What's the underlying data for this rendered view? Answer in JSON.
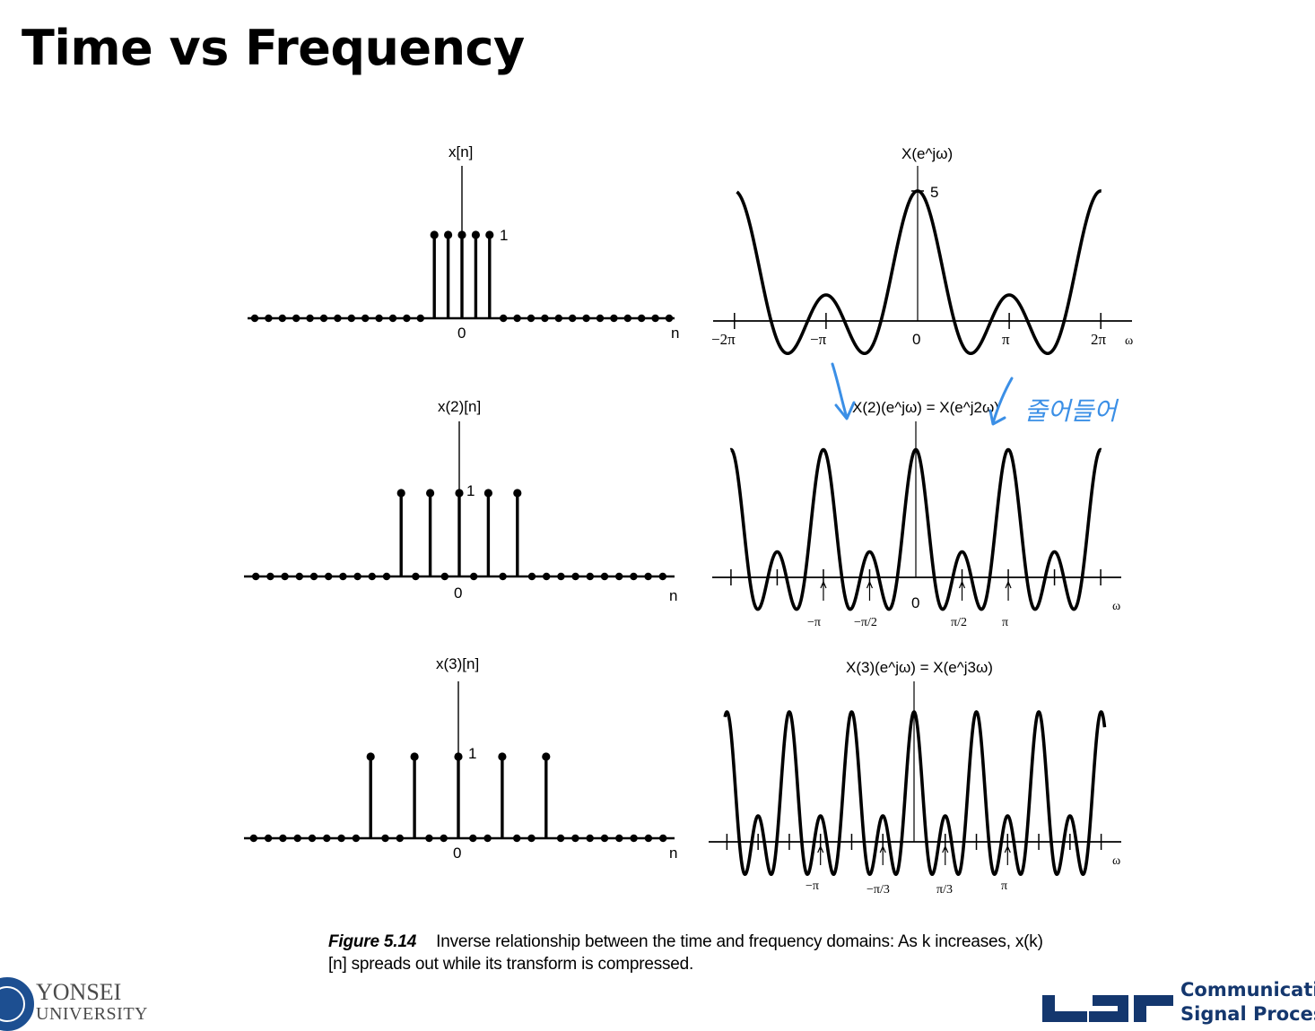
{
  "slide": {
    "title": "Time vs Frequency"
  },
  "figure": {
    "labels": {
      "x_n": "x[n]",
      "x2_n": "x(2)[n]",
      "x3_n": "x(3)[n]",
      "X": "X(e^jω)",
      "X2": "X(2)(e^jω) = X(e^j2ω)",
      "X3": "X(3)(e^jω) = X(e^j3ω)",
      "zero": "0",
      "n": "n",
      "omega": "ω",
      "one": "1",
      "five": "5",
      "minus_two_pi": "−2π",
      "minus_pi": "−π",
      "pi": "π",
      "two_pi": "2π",
      "minus_pi_over_2": "−π/2",
      "pi_over_2": "π/2",
      "minus_pi_over_3": "−π/3",
      "pi_over_3": "π/3"
    },
    "annotation": "줄어들어",
    "annotation_color": "#3b8fe6",
    "stems": {
      "x": {
        "nonzero_n": [
          -2,
          -1,
          0,
          1,
          2
        ],
        "amplitude": 1
      },
      "x2": {
        "nonzero_n": [
          -4,
          -2,
          0,
          2,
          4
        ],
        "amplitude": 1
      },
      "x3": {
        "nonzero_n": [
          -6,
          -3,
          0,
          3,
          6
        ],
        "amplitude": 1
      }
    },
    "spectra": {
      "X": {
        "compression": 1,
        "peak": 5
      },
      "X2": {
        "compression": 2,
        "peak": 5
      },
      "X3": {
        "compression": 3,
        "peak": 5
      }
    }
  },
  "caption": {
    "label": "Figure 5.14",
    "text": "Inverse relationship between the time and frequency domains: As k increases, x(k)[n] spreads out while its transform is compressed."
  },
  "logos": {
    "university_line1": "YONSEI",
    "university_line2": "UNIVERSITY",
    "lab_line1": "Communications",
    "lab_line2": "Signal Processing"
  }
}
